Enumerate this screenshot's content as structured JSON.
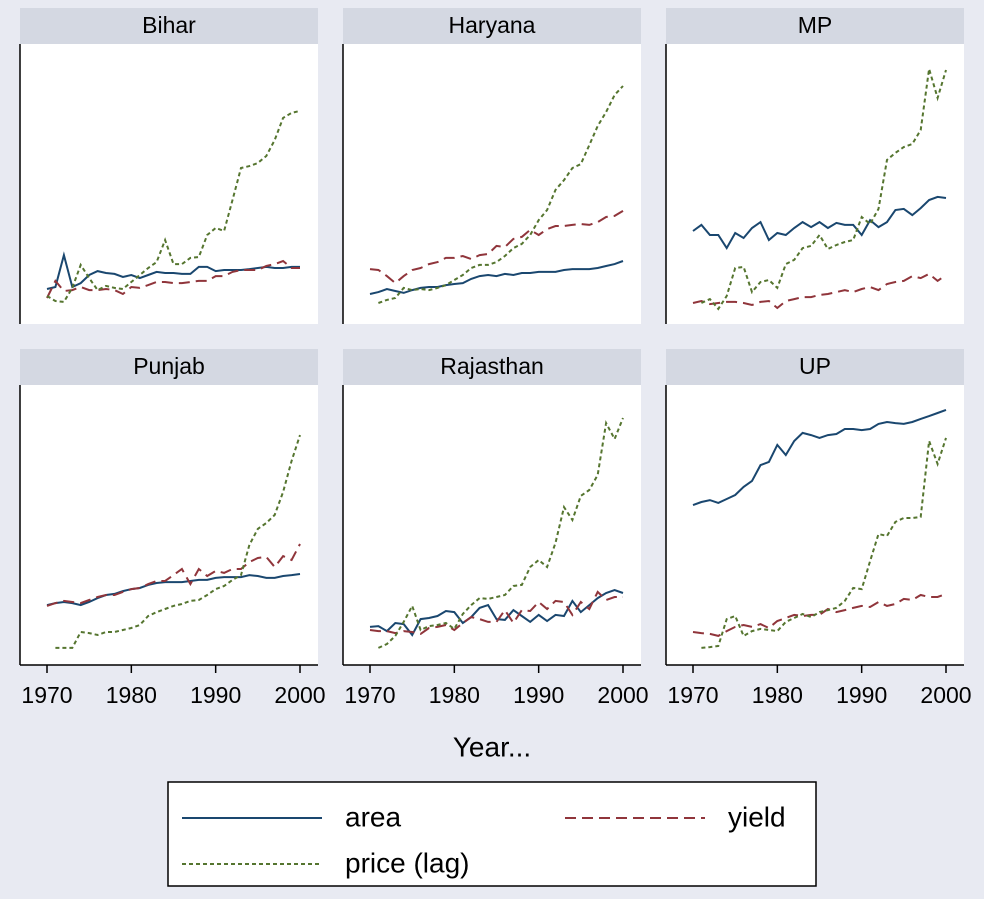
{
  "chart_data": {
    "type": "line",
    "xlabel": "Year...",
    "x": [
      1970,
      1971,
      1972,
      1973,
      1974,
      1975,
      1976,
      1977,
      1978,
      1979,
      1980,
      1981,
      1982,
      1983,
      1984,
      1985,
      1986,
      1987,
      1988,
      1989,
      1990,
      1991,
      1992,
      1993,
      1994,
      1995,
      1996,
      1997,
      1998,
      1999,
      2000
    ],
    "xlim": [
      1970,
      2000
    ],
    "xticks": [
      1970,
      1980,
      1990,
      2000
    ],
    "ylim": [
      0,
      100
    ],
    "series": [
      {
        "name": "area",
        "color": "#1a476f",
        "dash": "solid"
      },
      {
        "name": "yield",
        "color": "#90353b",
        "dash": "long"
      },
      {
        "name": "price (lag)",
        "color": "#55752f",
        "dash": "short"
      }
    ],
    "panels": [
      {
        "title": "Bihar",
        "values": [
          [
            12.5,
            13.2,
            24.6,
            13.2,
            14.6,
            17.5,
            18.9,
            18.2,
            17.9,
            16.8,
            17.5,
            16.4,
            17.5,
            18.6,
            18.2,
            18.2,
            17.9,
            17.9,
            20.4,
            20.4,
            18.9,
            19.3,
            19.3,
            19.3,
            19.6,
            20,
            20.4,
            20,
            20,
            20.4,
            20.4
          ],
          [
            9.3,
            15.4,
            11.8,
            12.1,
            13.2,
            12.1,
            12.1,
            12.5,
            12.1,
            10.7,
            13.2,
            12.9,
            13.9,
            15,
            15,
            14.6,
            14.6,
            15,
            15.4,
            15.4,
            17.1,
            17.1,
            18.6,
            19.3,
            19.3,
            19.3,
            20.7,
            21.4,
            22.5,
            20,
            20
          ],
          [
            10,
            8.2,
            7.9,
            12.9,
            21.1,
            16.4,
            12.1,
            13.6,
            12.9,
            12.5,
            15,
            17.5,
            20,
            22.1,
            30,
            21.4,
            21.4,
            23.6,
            23.9,
            31.8,
            34.3,
            33.2,
            44.3,
            55.7,
            56.4,
            57.5,
            60,
            65.7,
            73.6,
            75.4,
            76.1
          ]
        ]
      },
      {
        "title": "Haryana",
        "values": [
          [
            10.7,
            11.4,
            12.5,
            11.8,
            11.1,
            12.1,
            12.9,
            13.2,
            13.2,
            13.9,
            14.3,
            14.6,
            16.1,
            17.1,
            17.5,
            17.1,
            17.9,
            17.5,
            18.2,
            18.2,
            18.6,
            18.6,
            18.6,
            19.3,
            19.6,
            19.6,
            19.6,
            20,
            20.7,
            21.4,
            22.5
          ],
          [
            19.6,
            19.3,
            17.1,
            14.6,
            17.1,
            19.3,
            20,
            21.4,
            22.1,
            23.6,
            23.6,
            24.3,
            23.2,
            24.6,
            25,
            27.9,
            27.5,
            30.4,
            31.1,
            33.6,
            31.8,
            33.9,
            35,
            35,
            35.4,
            35.7,
            35.4,
            36.4,
            38.2,
            38.6,
            40.4
          ],
          [
            null,
            7.5,
            8.6,
            9.3,
            12.9,
            12.1,
            12.5,
            12.1,
            12.9,
            13.9,
            15.7,
            17.5,
            20,
            21.1,
            21.1,
            22.1,
            24.3,
            27.1,
            28.6,
            31.8,
            37.1,
            40.7,
            47.9,
            51.4,
            55.7,
            57.1,
            63.9,
            70.7,
            75.7,
            81.8,
            85
          ]
        ]
      },
      {
        "title": "MP",
        "values": [
          [
            33.2,
            35.4,
            31.8,
            31.8,
            27.1,
            32.5,
            30.7,
            34.3,
            36.4,
            30,
            32.5,
            31.8,
            34.3,
            36.4,
            34.6,
            36.4,
            34.3,
            36.1,
            35.4,
            35.4,
            31.8,
            37.1,
            34.6,
            36.4,
            40.7,
            41.1,
            38.9,
            41.4,
            44.3,
            45.4,
            45
          ],
          [
            7.5,
            8.2,
            7.1,
            7.5,
            7.9,
            7.9,
            7.5,
            6.8,
            7.9,
            8.2,
            5.7,
            8.2,
            8.9,
            9.6,
            9.6,
            10.4,
            10.7,
            11.4,
            12.1,
            11.4,
            12.5,
            13.2,
            12.1,
            14.3,
            15,
            15.4,
            17.1,
            16.4,
            17.9,
            15.4,
            17.5
          ],
          [
            null,
            7.5,
            8.9,
            5.4,
            10,
            20,
            20.4,
            11.4,
            15,
            15.7,
            12.9,
            21.4,
            22.9,
            27.1,
            27.9,
            31.8,
            26.8,
            28.2,
            29.3,
            30,
            38.2,
            35.7,
            41.1,
            58.6,
            61.1,
            63.2,
            64.3,
            69.3,
            91.1,
            80.7,
            90.7
          ]
        ]
      },
      {
        "title": "Punjab",
        "values": [
          [
            21.4,
            22.1,
            22.5,
            22.1,
            21.4,
            22.5,
            23.9,
            25,
            25.4,
            26.4,
            27.1,
            27.5,
            28.6,
            29.3,
            29.6,
            29.6,
            29.6,
            30,
            30.4,
            30.4,
            31.1,
            31.4,
            31.4,
            31.4,
            32.1,
            31.8,
            31.1,
            31.1,
            31.8,
            32.1,
            32.5
          ],
          [
            21.1,
            22.1,
            22.9,
            22.5,
            22.1,
            23.2,
            24.3,
            25,
            25,
            26.1,
            27.1,
            27.5,
            28.9,
            30,
            30,
            32.1,
            34.3,
            28.9,
            34.3,
            31.8,
            33.6,
            32.9,
            34.3,
            34.3,
            36.8,
            38.2,
            38.6,
            35,
            38.9,
            37.5,
            43.2
          ],
          [
            null,
            6.1,
            6.1,
            6.1,
            11.8,
            11.4,
            10.7,
            11.8,
            11.8,
            12.5,
            13.2,
            14.3,
            17.5,
            18.9,
            20,
            21.1,
            21.8,
            22.9,
            23.2,
            25,
            27.1,
            28.2,
            30.4,
            32.1,
            42.9,
            48.6,
            50.7,
            53.6,
            61.8,
            72.9,
            82.1
          ]
        ]
      },
      {
        "title": "Rajasthan",
        "values": [
          [
            13.6,
            13.9,
            12.1,
            15,
            14.6,
            10.7,
            16.4,
            16.8,
            17.5,
            19.3,
            18.9,
            15,
            17.1,
            20.4,
            21.4,
            16.4,
            16.1,
            19.6,
            17.5,
            15.4,
            17.9,
            15.7,
            17.9,
            17.5,
            22.9,
            18.9,
            21.4,
            23.9,
            25.7,
            26.8,
            25.7
          ],
          [
            12.5,
            12.1,
            12.1,
            11.4,
            12.1,
            11.8,
            11.1,
            13.2,
            13.6,
            14.3,
            12.5,
            15,
            17.1,
            16.4,
            15.4,
            15.4,
            19.6,
            15,
            19.6,
            19.3,
            22.5,
            20,
            22.9,
            22.5,
            17.9,
            22.5,
            20,
            26.1,
            23.2,
            24.3,
            24.3
          ],
          [
            null,
            6.1,
            7.5,
            10.4,
            15.4,
            21.1,
            12.5,
            13.9,
            14.3,
            15,
            12.9,
            18.2,
            21.4,
            23.9,
            23.6,
            24.3,
            25,
            28.2,
            28.6,
            35,
            37.5,
            35,
            43.6,
            56.4,
            51.8,
            60.4,
            62.5,
            67.9,
            86.4,
            80.7,
            88.2
          ]
        ]
      },
      {
        "title": "UP",
        "values": [
          [
            57.1,
            58.2,
            58.9,
            57.9,
            59.3,
            60.7,
            63.6,
            65.7,
            71.4,
            72.5,
            78.6,
            75,
            80,
            82.9,
            82.1,
            81.1,
            82.1,
            82.5,
            84.3,
            84.3,
            83.9,
            84.3,
            86.1,
            86.8,
            86.4,
            86.1,
            86.8,
            87.9,
            88.9,
            90,
            91.1
          ],
          [
            11.8,
            11.4,
            11.1,
            10.4,
            12.1,
            13.6,
            14.3,
            13.6,
            14.6,
            13.2,
            15.7,
            16.8,
            17.9,
            17.5,
            17.9,
            17.9,
            20,
            18.9,
            19.6,
            20.4,
            21.1,
            20.7,
            22.5,
            21.1,
            21.8,
            23.6,
            23.2,
            25,
            24.3,
            24.3,
            25.4
          ],
          [
            null,
            6.1,
            6.4,
            6.8,
            16.4,
            17.5,
            10.4,
            12.1,
            12.9,
            12.5,
            12.1,
            15.4,
            16.8,
            18.2,
            17.1,
            18.9,
            19.6,
            20.4,
            22.9,
            27.5,
            27.1,
            37.1,
            46.8,
            46.1,
            51.1,
            52.5,
            52.5,
            52.9,
            80,
            71.8,
            81.1
          ]
        ]
      }
    ]
  }
}
